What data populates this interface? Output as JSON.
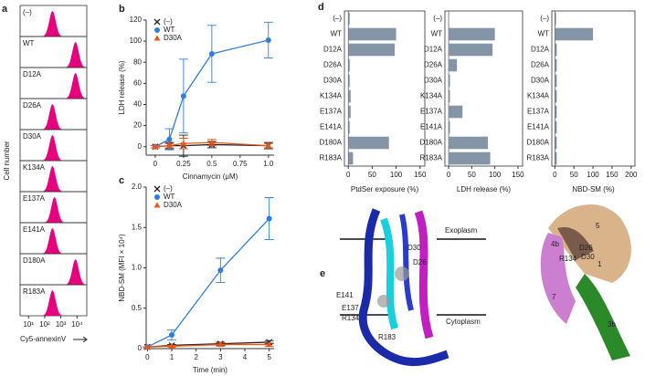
{
  "panel_labels": [
    "a",
    "b",
    "c",
    "d",
    "e"
  ],
  "chart_data": [
    {
      "type": "density",
      "x_label": "Cy5-annexinV",
      "y_label": "Cell number",
      "color": "#e6007e",
      "categories": [
        "(–)",
        "WT",
        "D12A",
        "D26A",
        "D30A",
        "K134A",
        "E137A",
        "E141A",
        "D180A",
        "R183A"
      ],
      "values": [
        300,
        8000,
        8000,
        300,
        300,
        300,
        400,
        300,
        8000,
        300
      ],
      "log_scale": true,
      "xlim": [
        3,
        40000
      ],
      "xticks": [
        {
          "value": 10,
          "label": "10¹"
        },
        {
          "value": 100,
          "label": "10²"
        },
        {
          "value": 1000,
          "label": "10³"
        },
        {
          "value": 10000,
          "label": "10⁴"
        }
      ]
    },
    {
      "type": "line",
      "x_label": "Cinnamycin (μM)",
      "y_label": "LDH release (%)",
      "x": [
        0,
        0.125,
        0.25,
        0.5,
        1.0
      ],
      "series": [
        {
          "name": "(–)",
          "color": "#222222",
          "marker": "x",
          "values": [
            0,
            1,
            1,
            2,
            1
          ],
          "errors": [
            1,
            3,
            10,
            3,
            3
          ]
        },
        {
          "name": "WT",
          "color": "#2f7de1",
          "marker": "circle",
          "values": [
            0,
            7,
            48,
            88,
            101
          ],
          "errors": [
            1,
            10,
            35,
            27,
            17
          ]
        },
        {
          "name": "D30A",
          "color": "#e8581c",
          "marker": "triangle",
          "values": [
            0,
            1,
            3,
            4,
            1
          ],
          "errors": [
            1,
            2,
            5,
            3,
            2
          ]
        }
      ],
      "xlim": [
        -0.08,
        1.05
      ],
      "ylim": [
        -8,
        120
      ],
      "xticks": [
        0,
        0.25,
        0.5,
        0.75,
        {
          "value": 1,
          "label": "1.0"
        }
      ],
      "yticks": [
        0,
        20,
        40,
        60,
        80,
        100,
        120
      ]
    },
    {
      "type": "line",
      "x_label": "Time (min)",
      "y_label": "NBD-SM (MFI × 10⁴)",
      "x": [
        0,
        1,
        3,
        5
      ],
      "series": [
        {
          "name": "(–)",
          "color": "#222222",
          "marker": "x",
          "values": [
            0.02,
            0.04,
            0.06,
            0.08
          ],
          "errors": [
            0,
            0.01,
            0.02,
            0.02
          ]
        },
        {
          "name": "WT",
          "color": "#2f7de1",
          "marker": "circle",
          "values": [
            0.02,
            0.17,
            0.97,
            1.61
          ],
          "errors": [
            0,
            0.06,
            0.15,
            0.26
          ]
        },
        {
          "name": "D30A",
          "color": "#e8581c",
          "marker": "triangle",
          "values": [
            0.02,
            0.03,
            0.05,
            0.05
          ],
          "errors": [
            0,
            0.01,
            0.02,
            0.02
          ]
        }
      ],
      "xlim": [
        -0.05,
        5.2
      ],
      "ylim": [
        0,
        2
      ],
      "xticks": [
        0,
        1,
        2,
        3,
        4,
        5
      ],
      "yticks": [
        0,
        {
          "value": 0.5,
          "label": "0.5"
        },
        {
          "value": 1,
          "label": "1.0"
        },
        {
          "value": 1.5,
          "label": "1.5"
        },
        {
          "value": 2,
          "label": "2.0"
        }
      ]
    },
    {
      "type": "hbar",
      "x_label": "PtdSer exposure (%)",
      "color": "#8495a8",
      "categories": [
        "(–)",
        "WT",
        "D12A",
        "D26A",
        "D30A",
        "K134A",
        "E137A",
        "E141A",
        "D180A",
        "R183A"
      ],
      "values": [
        3,
        100,
        97,
        3,
        3,
        5,
        5,
        3,
        85,
        10
      ],
      "xlim": [
        -8,
        160
      ],
      "xticks": [
        0,
        50,
        100,
        150
      ]
    },
    {
      "type": "hbar",
      "x_label": "LDH release (%)",
      "color": "#8495a8",
      "categories": [
        "(–)",
        "WT",
        "D12A",
        "D26A",
        "D30A",
        "K134A",
        "E137A",
        "E141A",
        "D180A",
        "R183A"
      ],
      "values": [
        0,
        100,
        95,
        18,
        3,
        3,
        30,
        3,
        85,
        90
      ],
      "xlim": [
        -8,
        160
      ],
      "xticks": [
        0,
        50,
        100,
        150
      ]
    },
    {
      "type": "hbar",
      "x_label": "NBD-SM (%)",
      "color": "#8495a8",
      "categories": [
        "(–)",
        "WT",
        "D12A",
        "D26A",
        "D30A",
        "K134A",
        "E137A",
        "E141A",
        "D180A",
        "R183A"
      ],
      "values": [
        3,
        100,
        5,
        5,
        5,
        5,
        5,
        5,
        5,
        5
      ],
      "xlim": [
        -8,
        210
      ],
      "xticks": [
        0,
        50,
        100,
        150,
        200
      ]
    }
  ],
  "structure": {
    "membrane": [
      "Exoplasm",
      "Cytoplasm"
    ],
    "residues": [
      "D26",
      "D30",
      "E141",
      "E137",
      "R134",
      "R183",
      "D26",
      "D30",
      "R134",
      "4b",
      "5",
      "1",
      "3b",
      "7"
    ]
  }
}
